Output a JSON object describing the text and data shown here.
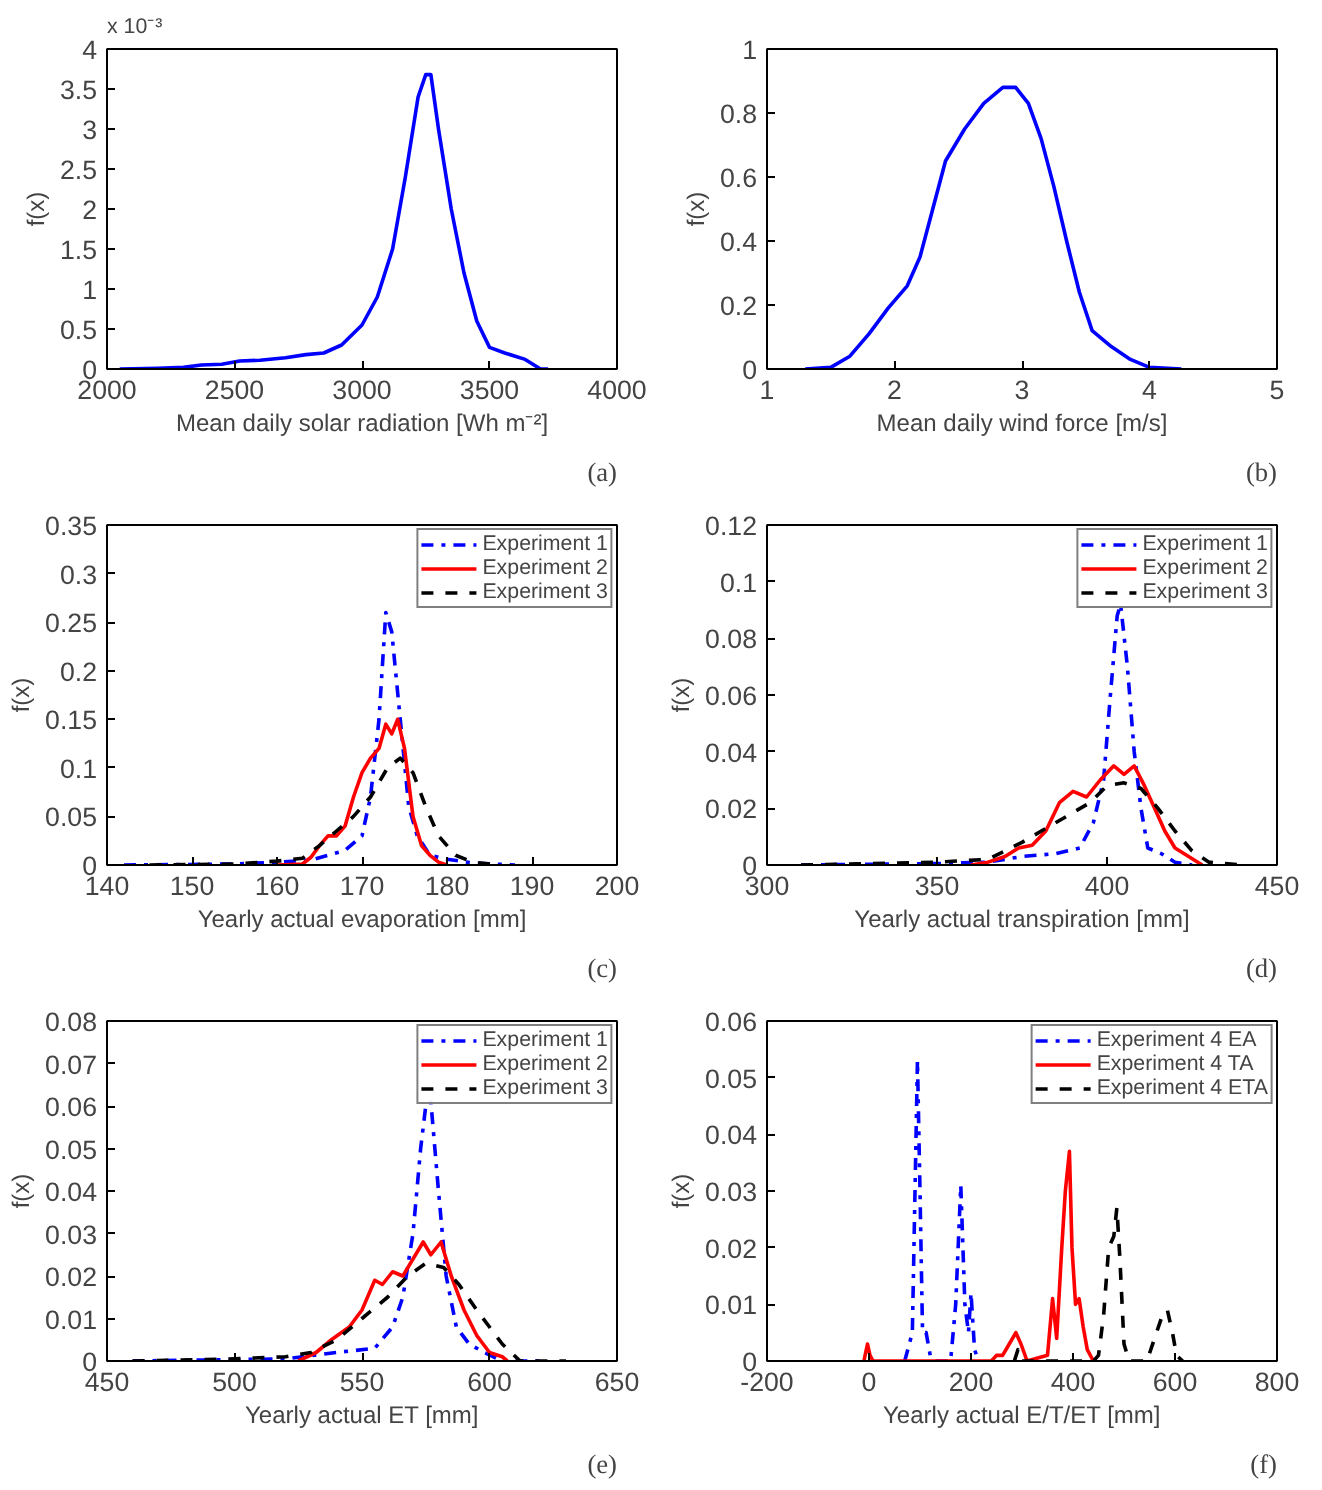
{
  "chart_data": [
    {
      "type": "line",
      "xlabel": "Mean daily solar radiation [Wh m⁻²]",
      "ylabel": "f(x)",
      "annotations": [
        "x 10⁻³",
        "(a)"
      ],
      "xlim": [
        2000,
        4000
      ],
      "xticks": [
        2000,
        2500,
        3000,
        3500,
        4000
      ],
      "ylim": [
        0,
        4
      ],
      "yticks": [
        0,
        0.5,
        1,
        1.5,
        2,
        2.5,
        3,
        3.5,
        4
      ],
      "grid": false,
      "legend": false,
      "line_style": "solid",
      "series": [
        {
          "color": "#0000ff",
          "x": [
            2050,
            2200,
            2300,
            2370,
            2450,
            2520,
            2600,
            2700,
            2780,
            2850,
            2920,
            3000,
            3060,
            3120,
            3170,
            3220,
            3250,
            3270,
            3300,
            3350,
            3400,
            3450,
            3500,
            3560,
            3640,
            3700,
            3730
          ],
          "values": [
            0,
            0.01,
            0.02,
            0.05,
            0.06,
            0.1,
            0.11,
            0.14,
            0.18,
            0.2,
            0.3,
            0.55,
            0.9,
            1.5,
            2.4,
            3.4,
            3.68,
            3.68,
            3.0,
            2.0,
            1.2,
            0.6,
            0.27,
            0.2,
            0.12,
            0.0,
            0
          ]
        }
      ]
    },
    {
      "type": "line",
      "xlabel": "Mean daily wind force [m/s]",
      "ylabel": "f(x)",
      "annotations": [
        "(b)"
      ],
      "xlim": [
        1,
        5
      ],
      "xticks": [
        1,
        2,
        3,
        4,
        5
      ],
      "ylim": [
        0,
        1
      ],
      "yticks": [
        0,
        0.2,
        0.4,
        0.6,
        0.8,
        1
      ],
      "grid": false,
      "legend": false,
      "line_style": "solid",
      "series": [
        {
          "color": "#0000ff",
          "x": [
            1.3,
            1.5,
            1.65,
            1.8,
            1.95,
            2.1,
            2.2,
            2.3,
            2.4,
            2.55,
            2.7,
            2.85,
            2.95,
            3.05,
            3.15,
            3.25,
            3.35,
            3.45,
            3.55,
            3.7,
            3.85,
            4.0,
            4.25
          ],
          "values": [
            0,
            0.005,
            0.04,
            0.11,
            0.19,
            0.26,
            0.35,
            0.5,
            0.65,
            0.75,
            0.83,
            0.88,
            0.88,
            0.83,
            0.72,
            0.57,
            0.4,
            0.24,
            0.12,
            0.07,
            0.03,
            0.005,
            0
          ]
        }
      ]
    },
    {
      "type": "line",
      "xlabel": "Yearly actual evaporation [mm]",
      "ylabel": "f(x)",
      "annotations": [
        "(c)"
      ],
      "xlim": [
        140,
        200
      ],
      "xticks": [
        140,
        150,
        160,
        170,
        180,
        190,
        200
      ],
      "ylim": [
        0,
        0.35
      ],
      "yticks": [
        0,
        0.05,
        0.1,
        0.15,
        0.2,
        0.25,
        0.3,
        0.35
      ],
      "grid": false,
      "legend": "top right",
      "series": [
        {
          "name": "Experiment 1",
          "color": "#0000ff",
          "line_style": "dashdot",
          "x": [
            142,
            155,
            160,
            164,
            166,
            168,
            170,
            171,
            172,
            172.8,
            173.5,
            174.5,
            175.5,
            176.5,
            178,
            180,
            183,
            188
          ],
          "values": [
            0,
            0.001,
            0.003,
            0.005,
            0.01,
            0.015,
            0.03,
            0.07,
            0.15,
            0.26,
            0.24,
            0.15,
            0.06,
            0.03,
            0.01,
            0.006,
            0.002,
            0
          ]
        },
        {
          "name": "Experiment 2",
          "color": "#ff0000",
          "line_style": "solid",
          "x": [
            160,
            163,
            164,
            165,
            166,
            167,
            168,
            169,
            170,
            171,
            172,
            172.8,
            173.5,
            174.2,
            175,
            176,
            177,
            178,
            179,
            180
          ],
          "values": [
            0,
            0.001,
            0.008,
            0.02,
            0.03,
            0.03,
            0.04,
            0.07,
            0.095,
            0.11,
            0.12,
            0.145,
            0.135,
            0.15,
            0.12,
            0.05,
            0.02,
            0.01,
            0.003,
            0
          ]
        },
        {
          "name": "Experiment 3",
          "color": "#000000",
          "line_style": "dashed",
          "x": [
            145,
            155,
            160,
            163,
            165,
            167,
            169,
            171,
            173,
            174.5,
            176,
            177.5,
            179,
            181,
            183,
            186
          ],
          "values": [
            0,
            0.001,
            0.004,
            0.007,
            0.02,
            0.035,
            0.05,
            0.07,
            0.1,
            0.11,
            0.095,
            0.06,
            0.03,
            0.01,
            0.003,
            0
          ]
        }
      ]
    },
    {
      "type": "line",
      "xlabel": "Yearly actual transpiration [mm]",
      "ylabel": "f(x)",
      "annotations": [
        "(d)"
      ],
      "xlim": [
        300,
        450
      ],
      "xticks": [
        300,
        350,
        400,
        450
      ],
      "ylim": [
        0,
        0.12
      ],
      "yticks": [
        0,
        0.02,
        0.04,
        0.06,
        0.08,
        0.1,
        0.12
      ],
      "grid": false,
      "legend": "top right",
      "series": [
        {
          "name": "Experiment 1",
          "color": "#0000ff",
          "line_style": "dashdot",
          "x": [
            310,
            350,
            365,
            375,
            385,
            392,
            396,
            399,
            401,
            403,
            404,
            406,
            408,
            410,
            412,
            416,
            420,
            425
          ],
          "values": [
            0,
            0.0005,
            0.001,
            0.003,
            0.004,
            0.006,
            0.015,
            0.03,
            0.06,
            0.088,
            0.092,
            0.07,
            0.04,
            0.02,
            0.006,
            0.004,
            0.001,
            0
          ]
        },
        {
          "name": "Experiment 2",
          "color": "#ff0000",
          "line_style": "solid",
          "x": [
            360,
            365,
            370,
            374,
            378,
            382,
            386,
            390,
            394,
            398,
            402,
            405,
            408,
            411,
            414,
            417,
            420,
            424,
            428
          ],
          "values": [
            0,
            0.001,
            0.003,
            0.006,
            0.007,
            0.012,
            0.022,
            0.026,
            0.024,
            0.03,
            0.035,
            0.032,
            0.035,
            0.028,
            0.02,
            0.012,
            0.006,
            0.003,
            0
          ]
        },
        {
          "name": "Experiment 3",
          "color": "#000000",
          "line_style": "dashed",
          "x": [
            310,
            350,
            365,
            375,
            385,
            395,
            400,
            405,
            410,
            415,
            420,
            425,
            430,
            440
          ],
          "values": [
            0,
            0.001,
            0.002,
            0.008,
            0.015,
            0.022,
            0.028,
            0.029,
            0.027,
            0.02,
            0.012,
            0.005,
            0.001,
            0
          ]
        }
      ]
    },
    {
      "type": "line",
      "xlabel": "Yearly actual ET [mm]",
      "ylabel": "f(x)",
      "annotations": [
        "(e)"
      ],
      "xlim": [
        450,
        650
      ],
      "xticks": [
        450,
        500,
        550,
        600,
        650
      ],
      "ylim": [
        0,
        0.08
      ],
      "yticks": [
        0,
        0.01,
        0.02,
        0.03,
        0.04,
        0.05,
        0.06,
        0.07,
        0.08
      ],
      "grid": false,
      "legend": "top right",
      "series": [
        {
          "name": "Experiment 1",
          "color": "#0000ff",
          "line_style": "dashdot",
          "x": [
            460,
            520,
            540,
            555,
            562,
            566,
            570,
            573,
            575,
            577,
            580,
            583,
            587,
            592,
            598,
            605,
            620
          ],
          "values": [
            0,
            0.0005,
            0.002,
            0.003,
            0.008,
            0.015,
            0.03,
            0.05,
            0.06,
            0.061,
            0.04,
            0.02,
            0.008,
            0.004,
            0.002,
            0,
            0
          ]
        },
        {
          "name": "Experiment 2",
          "color": "#ff0000",
          "line_style": "solid",
          "x": [
            525,
            532,
            538,
            545,
            550,
            555,
            558,
            562,
            566,
            570,
            574,
            577,
            581,
            585,
            590,
            595,
            600,
            605,
            607
          ],
          "values": [
            0,
            0.002,
            0.005,
            0.008,
            0.012,
            0.019,
            0.018,
            0.021,
            0.02,
            0.024,
            0.028,
            0.025,
            0.028,
            0.02,
            0.012,
            0.006,
            0.002,
            0.001,
            0
          ]
        },
        {
          "name": "Experiment 3",
          "color": "#000000",
          "line_style": "dashed",
          "x": [
            460,
            500,
            520,
            530,
            540,
            550,
            560,
            568,
            575,
            582,
            588,
            595,
            600,
            605,
            612,
            630
          ],
          "values": [
            0,
            0.0005,
            0.001,
            0.002,
            0.005,
            0.01,
            0.015,
            0.02,
            0.023,
            0.022,
            0.018,
            0.012,
            0.008,
            0.004,
            0,
            0
          ]
        }
      ]
    },
    {
      "type": "line",
      "xlabel": "Yearly actual E/T/ET [mm]",
      "ylabel": "f(x)",
      "annotations": [
        "(f)"
      ],
      "xlim": [
        -200,
        800
      ],
      "xticks": [
        -200,
        0,
        200,
        400,
        600,
        800
      ],
      "ylim": [
        0,
        0.06
      ],
      "yticks": [
        0,
        0.01,
        0.02,
        0.03,
        0.04,
        0.05,
        0.06
      ],
      "grid": false,
      "legend": "top right",
      "series": [
        {
          "name": "Experiment 4 EA",
          "color": "#0000ff",
          "line_style": "dashdot",
          "x": [
            70,
            85,
            95,
            100,
            105,
            112,
            120,
            130,
            160,
            170,
            180,
            188,
            195,
            200,
            207,
            215
          ],
          "values": [
            0,
            0.005,
            0.053,
            0.03,
            0.005,
            0.005,
            0.001,
            0,
            0,
            0.01,
            0.031,
            0.01,
            0.005,
            0.012,
            0.002,
            0
          ]
        },
        {
          "name": "Experiment 4 TA",
          "color": "#ff0000",
          "line_style": "solid",
          "x": [
            -10,
            -3,
            2,
            8,
            240,
            250,
            262,
            275,
            288,
            298,
            310,
            350,
            360,
            368,
            378,
            385,
            393,
            398,
            405,
            412,
            420,
            428,
            440
          ],
          "values": [
            0,
            0.003,
            0.001,
            0,
            0,
            0.001,
            0.001,
            0.003,
            0.005,
            0.003,
            0,
            0.001,
            0.011,
            0.004,
            0.02,
            0.03,
            0.037,
            0.02,
            0.01,
            0.011,
            0.006,
            0.002,
            0
          ]
        },
        {
          "name": "Experiment 4 ETA",
          "color": "#000000",
          "line_style": "dashed",
          "x": [
            285,
            292,
            300,
            440,
            450,
            460,
            470,
            480,
            486,
            492,
            500,
            510,
            545,
            560,
            575,
            585,
            595,
            603,
            615
          ],
          "values": [
            0,
            0.002,
            0,
            0,
            0.001,
            0.008,
            0.02,
            0.022,
            0.027,
            0.018,
            0.003,
            0,
            0,
            0.004,
            0.008,
            0.009,
            0.005,
            0.001,
            0
          ]
        }
      ]
    }
  ]
}
